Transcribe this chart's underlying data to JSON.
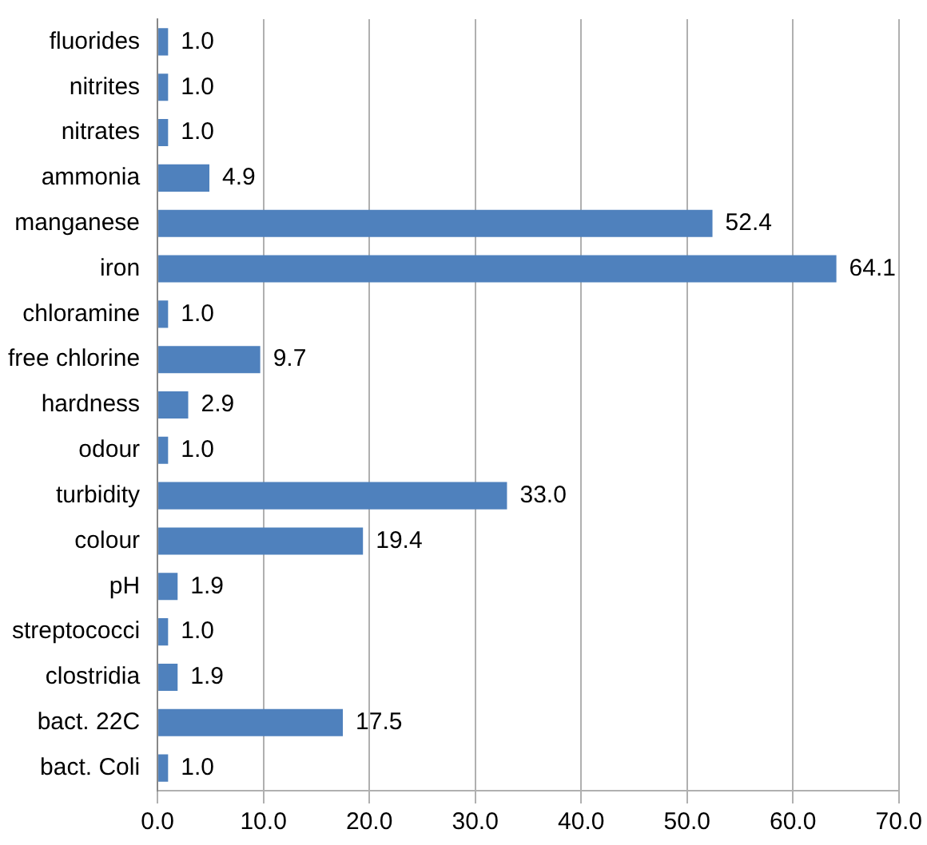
{
  "chart_data": {
    "type": "bar",
    "orientation": "horizontal",
    "categories": [
      "fluorides",
      "nitrites",
      "nitrates",
      "ammonia",
      "manganese",
      "iron",
      "chloramine",
      "free chlorine",
      "hardness",
      "odour",
      "turbidity",
      "colour",
      "pH",
      "streptococci",
      "clostridia",
      "bact. 22C",
      "bact. Coli"
    ],
    "values": [
      1.0,
      1.0,
      1.0,
      4.9,
      52.4,
      64.1,
      1.0,
      9.7,
      2.9,
      1.0,
      33.0,
      19.4,
      1.9,
      1.0,
      1.9,
      17.5,
      1.0
    ],
    "value_labels": [
      "1.0",
      "1.0",
      "1.0",
      "4.9",
      "52.4",
      "64.1",
      "1.0",
      "9.7",
      "2.9",
      "1.0",
      "33.0",
      "19.4",
      "1.9",
      "1.0",
      "1.9",
      "17.5",
      "1.0"
    ],
    "color": "#4f81bd",
    "xlim": [
      0,
      70
    ],
    "xticks": [
      {
        "value": 0,
        "label": "0.0"
      },
      {
        "value": 10,
        "label": "10.0"
      },
      {
        "value": 20,
        "label": "20.0"
      },
      {
        "value": 30,
        "label": "30.0"
      },
      {
        "value": 40,
        "label": "40.0"
      },
      {
        "value": 50,
        "label": "50.0"
      },
      {
        "value": 60,
        "label": "60.0"
      },
      {
        "value": 70,
        "label": "70.0"
      }
    ],
    "grid": "x"
  }
}
